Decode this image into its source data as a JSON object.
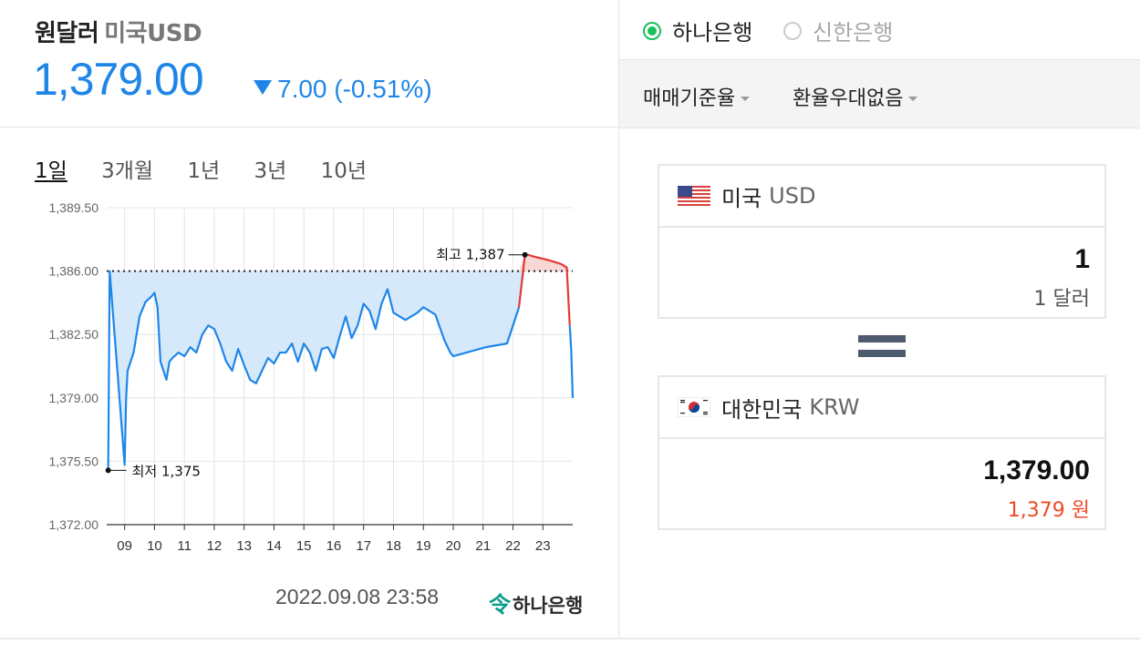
{
  "header": {
    "title": "원달러",
    "subtitle": "미국USD",
    "price": "1,379.00",
    "change": "7.00 (-0.51%)"
  },
  "periods": [
    "1일",
    "3개월",
    "1년",
    "3년",
    "10년"
  ],
  "timestamp": "2022.09.08 23:58",
  "bank_logo_text": "하나은행",
  "banks": {
    "selected": "하나은행",
    "other": "신한은행"
  },
  "dropdowns": {
    "rate_type": "매매기준율",
    "preference": "환율우대없음"
  },
  "from": {
    "country": "미국",
    "code": "USD",
    "amount": "1",
    "amount_text": "1 달러"
  },
  "to": {
    "country": "대한민국",
    "code": "KRW",
    "amount": "1,379.00",
    "amount_text": "1,379 원"
  },
  "colors": {
    "accent": "#1f86e8",
    "up": "#e53935",
    "green": "#19c05e",
    "red_text": "#f04a25"
  },
  "chart_data": {
    "type": "line",
    "yticks": [
      "1,389.50",
      "1,386.00",
      "1,382.50",
      "1,379.00",
      "1,375.50",
      "1,372.00"
    ],
    "ylim": [
      1372.0,
      1389.5
    ],
    "xticks": [
      "09",
      "10",
      "11",
      "12",
      "13",
      "14",
      "15",
      "16",
      "17",
      "18",
      "19",
      "20",
      "21",
      "22",
      "23"
    ],
    "xlim": [
      8.4,
      24.0
    ],
    "baseline": 1386.0,
    "annotations": {
      "high": "최고 1,387",
      "low": "최저 1,375"
    },
    "high_point": [
      22.4,
      1386.9
    ],
    "low_point": [
      8.45,
      1375.0
    ],
    "x": [
      8.45,
      8.5,
      9.0,
      9.05,
      9.1,
      9.3,
      9.5,
      9.7,
      9.9,
      10.0,
      10.1,
      10.2,
      10.3,
      10.4,
      10.5,
      10.6,
      10.8,
      11.0,
      11.2,
      11.4,
      11.6,
      11.8,
      12.0,
      12.2,
      12.4,
      12.6,
      12.8,
      13.0,
      13.2,
      13.4,
      13.6,
      13.8,
      14.0,
      14.2,
      14.4,
      14.6,
      14.8,
      15.0,
      15.2,
      15.4,
      15.6,
      15.8,
      16.0,
      16.2,
      16.4,
      16.6,
      16.8,
      17.0,
      17.2,
      17.4,
      17.6,
      17.8,
      18.0,
      18.4,
      18.8,
      19.0,
      19.4,
      19.7,
      19.9,
      20.0,
      21.1,
      21.8,
      22.2,
      22.4,
      22.5,
      22.7,
      23.2,
      23.6,
      23.8,
      23.9,
      23.95,
      24.0
    ],
    "y": [
      1375.0,
      1386.0,
      1375.3,
      1379.0,
      1380.5,
      1381.5,
      1383.5,
      1384.3,
      1384.6,
      1384.8,
      1384.0,
      1381.0,
      1380.5,
      1380.0,
      1381.0,
      1381.2,
      1381.5,
      1381.3,
      1381.8,
      1381.5,
      1382.5,
      1383.0,
      1382.8,
      1382.0,
      1381.0,
      1380.5,
      1381.7,
      1380.8,
      1380.0,
      1379.8,
      1380.5,
      1381.2,
      1380.9,
      1381.5,
      1381.5,
      1382.0,
      1381.0,
      1382.0,
      1381.5,
      1380.5,
      1381.7,
      1381.8,
      1381.2,
      1382.4,
      1383.5,
      1382.3,
      1383.0,
      1384.2,
      1383.8,
      1382.8,
      1384.2,
      1385.0,
      1383.7,
      1383.3,
      1383.7,
      1384.0,
      1383.6,
      1382.2,
      1381.5,
      1381.3,
      1381.8,
      1382.0,
      1384.0,
      1386.9,
      1386.9,
      1386.8,
      1386.6,
      1386.4,
      1386.2,
      1383.0,
      1381.6,
      1379.0
    ]
  }
}
